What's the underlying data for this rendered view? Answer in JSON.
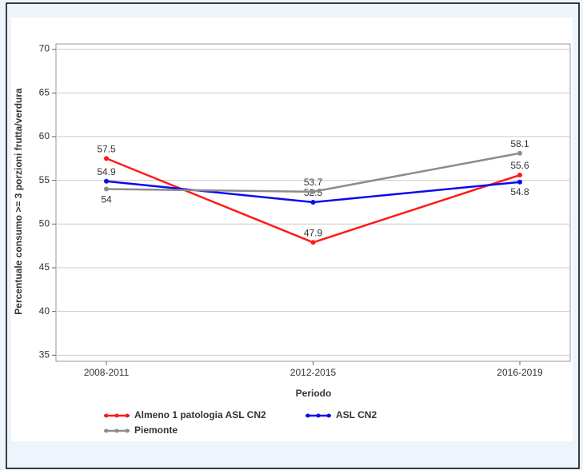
{
  "chart_data": {
    "type": "line",
    "x_label": "Periodo",
    "y_label": "Percentuale consumo >= 3 porzioni frutta/verdura",
    "categories": [
      "2008-2011",
      "2012-2015",
      "2016-2019"
    ],
    "series": [
      {
        "name": "Almeno 1 patologia ASL CN2",
        "color": "#ff1a1a",
        "values": [
          57.5,
          47.9,
          55.6
        ]
      },
      {
        "name": "ASL CN2",
        "color": "#0a0aee",
        "values": [
          54.9,
          52.5,
          54.8
        ]
      },
      {
        "name": "Piemonte",
        "color": "#8c8c8c",
        "values": [
          54,
          53.7,
          58.1
        ]
      }
    ],
    "ylim": [
      34.3,
      70.6
    ],
    "yticks": [
      35,
      40,
      45,
      50,
      55,
      60,
      65,
      70
    ],
    "grid": true,
    "legend": "bottom"
  }
}
